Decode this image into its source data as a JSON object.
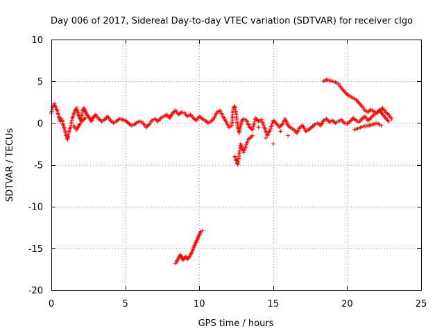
{
  "chart_data": {
    "type": "scatter",
    "title": "Day 006 of 2017, Sidereal Day-to-day VTEC variation (SDTVAR) for receiver clgo",
    "xlabel": "GPS time / hours",
    "ylabel": "SDTVAR / TECUs",
    "xlim": [
      0,
      25
    ],
    "ylim": [
      -20,
      10
    ],
    "xticks": [
      "0",
      "5",
      "10",
      "15",
      "20",
      "25"
    ],
    "yticks": [
      "10",
      "5",
      "0",
      "-5",
      "-10",
      "-15",
      "-20"
    ],
    "grid": true,
    "marker": "plus",
    "color": "#ff0000",
    "series": [
      {
        "name": "SDTVAR",
        "x": [
          0.0,
          0.1,
          0.2,
          0.3,
          0.4,
          0.5,
          0.6,
          0.7,
          0.8,
          0.9,
          1.0,
          1.1,
          1.2,
          1.3,
          1.4,
          1.5,
          1.6,
          1.7,
          1.8,
          1.9,
          2.0,
          2.1,
          2.2,
          2.3,
          2.4,
          2.5,
          2.6,
          2.7,
          2.8,
          2.9,
          3.0,
          3.2,
          3.4,
          3.6,
          3.8,
          4.0,
          4.2,
          4.4,
          4.6,
          4.8,
          5.0,
          5.2,
          5.4,
          5.6,
          5.8,
          6.0,
          6.2,
          6.4,
          6.6,
          6.8,
          7.0,
          7.2,
          7.4,
          7.6,
          7.8,
          8.0,
          8.2,
          8.4,
          8.6,
          8.8,
          9.0,
          9.2,
          9.4,
          9.6,
          9.8,
          10.0,
          10.2,
          10.4,
          10.6,
          10.8,
          11.0,
          11.2,
          11.4,
          11.6,
          11.8,
          12.0,
          12.2,
          12.3,
          12.4,
          12.5,
          12.6,
          12.7,
          12.8,
          12.9,
          13.0,
          13.2,
          13.4,
          13.6,
          13.8,
          14.0,
          14.2,
          14.4,
          14.6,
          14.8,
          15.0,
          15.2,
          15.4,
          15.6,
          15.8,
          16.0,
          16.2,
          16.4,
          16.6,
          16.8,
          17.0,
          17.2,
          17.4,
          17.6,
          17.8,
          18.0,
          18.2,
          18.4,
          18.6,
          18.8,
          19.0,
          19.2,
          19.4,
          19.6,
          19.8,
          20.0,
          20.2,
          20.4,
          20.6,
          20.8,
          21.0,
          21.2,
          21.4,
          21.6,
          21.8,
          22.0,
          22.2,
          22.4,
          22.6,
          22.8,
          23.0,
          1.5,
          1.7,
          1.9,
          2.1,
          2.3,
          12.4,
          12.6,
          12.8,
          13.0,
          13.3,
          13.6,
          14.0,
          14.5,
          15.0,
          15.5,
          16.0,
          18.4,
          18.6,
          18.8,
          19.0,
          19.2,
          19.4,
          19.6,
          19.8,
          20.0,
          20.2,
          20.4,
          20.6,
          20.8,
          21.0,
          21.2,
          21.4,
          21.6,
          21.8,
          22.0,
          22.2,
          22.4,
          22.6,
          22.8,
          20.5,
          20.8,
          21.1,
          21.4,
          21.7,
          22.0,
          22.3,
          8.4,
          8.5,
          8.6,
          8.7,
          8.8,
          8.9,
          9.0,
          9.1,
          9.2,
          9.3,
          9.4,
          9.5,
          9.6,
          9.7,
          9.8,
          9.9,
          10.0,
          10.1,
          10.2
        ],
        "y": [
          1.2,
          2.0,
          2.3,
          1.8,
          1.5,
          0.8,
          0.2,
          0.5,
          -0.2,
          -0.8,
          -1.5,
          -2.0,
          -1.0,
          -0.5,
          0.5,
          1.0,
          1.5,
          1.8,
          1.2,
          0.6,
          0.3,
          1.5,
          1.8,
          1.4,
          1.0,
          0.8,
          0.5,
          0.2,
          0.6,
          0.8,
          1.0,
          0.5,
          0.2,
          0.4,
          0.8,
          0.3,
          0.0,
          0.2,
          0.5,
          0.4,
          0.3,
          0.0,
          -0.3,
          -0.2,
          0.1,
          0.2,
          0.0,
          -0.5,
          -0.2,
          0.3,
          0.5,
          0.2,
          0.6,
          0.8,
          1.0,
          0.6,
          1.2,
          1.5,
          1.0,
          1.3,
          1.2,
          0.8,
          1.0,
          0.6,
          0.3,
          0.8,
          0.5,
          0.3,
          0.0,
          0.2,
          0.6,
          1.3,
          1.5,
          0.8,
          0.2,
          -0.5,
          -0.3,
          1.8,
          2.0,
          1.0,
          -0.5,
          -1.2,
          -0.2,
          0.3,
          0.5,
          0.3,
          -0.5,
          -0.8,
          0.6,
          0.2,
          0.4,
          -0.5,
          -1.5,
          -0.8,
          0.3,
          0.0,
          -0.5,
          -0.2,
          0.5,
          -0.3,
          -0.6,
          -0.8,
          -1.2,
          -0.5,
          -0.3,
          -1.0,
          -0.8,
          -0.5,
          -0.2,
          0.0,
          -0.3,
          0.3,
          0.5,
          0.1,
          0.3,
          0.0,
          0.2,
          0.4,
          0.0,
          -0.1,
          0.2,
          0.6,
          0.3,
          0.1,
          0.5,
          0.8,
          0.3,
          0.6,
          1.0,
          1.2,
          1.5,
          1.8,
          1.3,
          1.0,
          0.5,
          -0.3,
          -0.8,
          -0.2,
          0.3,
          0.6,
          -4.0,
          -5.0,
          -2.5,
          -3.5,
          -2.0,
          -1.5,
          -0.5,
          -1.8,
          -2.5,
          -1.0,
          -1.5,
          5.0,
          5.2,
          5.1,
          5.0,
          4.9,
          4.7,
          4.2,
          3.8,
          3.4,
          3.2,
          3.0,
          2.8,
          2.4,
          2.0,
          1.5,
          1.3,
          1.6,
          1.4,
          1.2,
          1.6,
          1.0,
          0.6,
          0.2,
          -0.8,
          -0.6,
          -0.4,
          -0.3,
          -0.2,
          0.0,
          -0.3,
          -16.8,
          -16.5,
          -16.2,
          -15.8,
          -16.0,
          -16.4,
          -16.2,
          -16.0,
          -16.3,
          -16.1,
          -15.8,
          -15.5,
          -15.0,
          -14.6,
          -14.2,
          -13.8,
          -13.4,
          -13.0,
          -12.9
        ]
      }
    ]
  }
}
